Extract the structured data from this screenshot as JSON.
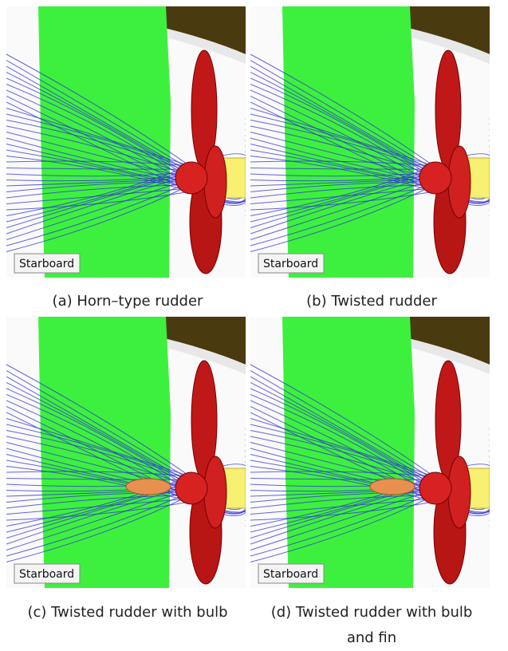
{
  "panels": [
    {
      "label": "Starboard",
      "caption": [
        "(a) Horn–type rudder"
      ],
      "bulb": false
    },
    {
      "label": "Starboard",
      "caption": [
        "(b) Twisted rudder"
      ],
      "bulb": false
    },
    {
      "label": "Starboard",
      "caption": [
        "(c) Twisted rudder with bulb"
      ],
      "bulb": true
    },
    {
      "label": "Starboard",
      "caption": [
        "(d) Twisted rudder with bulb",
        "and fin"
      ],
      "bulb": true
    }
  ]
}
